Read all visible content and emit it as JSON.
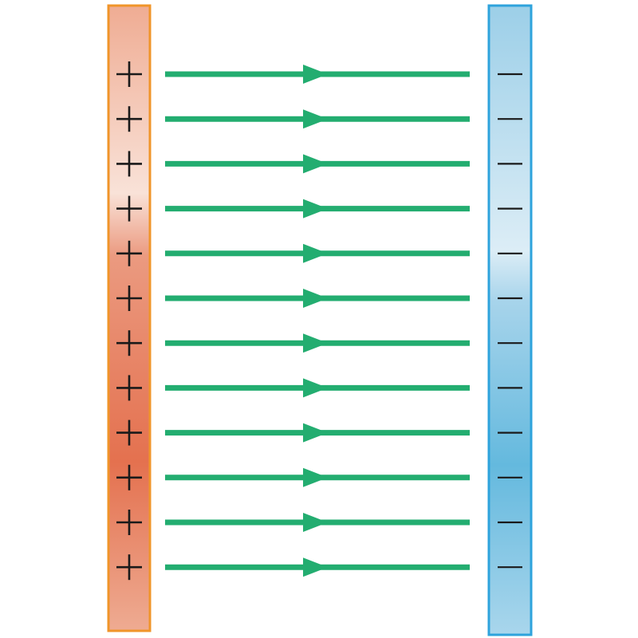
{
  "diagram": {
    "positive_plate": {
      "symbol": "+",
      "charge_count": 12,
      "border_color": "#f0952a",
      "gradient_colors": [
        "#efac93",
        "#f9e2d8",
        "#eb9a80",
        "#e4714f",
        "#eeab92"
      ]
    },
    "negative_plate": {
      "symbol": "−",
      "charge_count": 12,
      "border_color": "#2ea3dc",
      "gradient_colors": [
        "#9ccfe8",
        "#dcedf6",
        "#a7d4eb",
        "#64b9de",
        "#a9d6ec"
      ]
    },
    "field_lines": {
      "count": 12,
      "direction": "positive-to-negative",
      "color": "#23ad70"
    },
    "symbol_color": "#1a1a1a"
  }
}
